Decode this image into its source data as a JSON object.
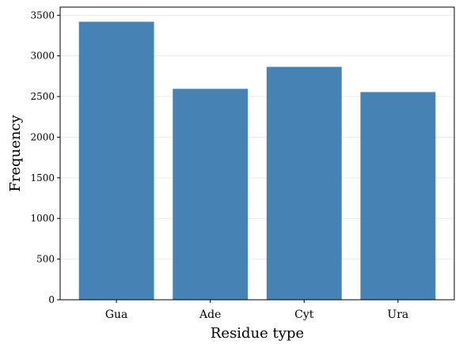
{
  "chart_data": {
    "type": "bar",
    "categories": [
      "Gua",
      "Ade",
      "Cyt",
      "Ura"
    ],
    "values": [
      3420,
      2595,
      2865,
      2555
    ],
    "xlabel": "Residue type",
    "ylabel": "Frequency",
    "ylim": [
      0,
      3600
    ],
    "yticks": [
      0,
      500,
      1000,
      1500,
      2000,
      2500,
      3000,
      3500
    ],
    "grid": "y",
    "bar_color": "#4682b4",
    "grid_color": "#ebebeb"
  }
}
